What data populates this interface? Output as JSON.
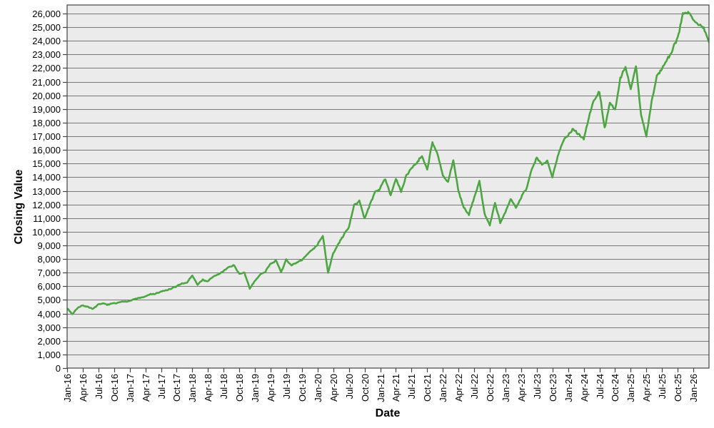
{
  "chart_data": {
    "type": "line",
    "title": "",
    "xlabel": "Date",
    "ylabel": "Closing Value",
    "legend": "none",
    "grid": "horizontal",
    "colors": {
      "page_background": "#ffffff",
      "plot_background": "#ebebeb",
      "gridline": "#787878",
      "frame": "#444444",
      "tick": "#000000",
      "line": "#4ca641"
    },
    "ylim": [
      0,
      26628
    ],
    "y_tick_step": 1000,
    "y_tick_labels": [
      "0",
      "1,000",
      "2,000",
      "3,000",
      "4,000",
      "5,000",
      "6,000",
      "7,000",
      "8,000",
      "9,000",
      "10,000",
      "11,000",
      "12,000",
      "13,000",
      "14,000",
      "15,000",
      "16,000",
      "17,000",
      "18,000",
      "19,000",
      "20,000",
      "21,000",
      "22,000",
      "23,000",
      "24,000",
      "25,000",
      "26,000"
    ],
    "x_interval": "monthly",
    "x_start": "Jan-16",
    "x_end": "Apr-26",
    "x_tick_every_months": 3,
    "x_tick_labels": [
      "Jan-16",
      "Apr-16",
      "Jul-16",
      "Oct-16",
      "Jan-17",
      "Apr-17",
      "Jul-17",
      "Oct-17",
      "Jan-18",
      "Apr-18",
      "Jul-18",
      "Oct-18",
      "Jan-19",
      "Apr-19",
      "Jul-19",
      "Oct-19",
      "Jan-20",
      "Apr-20",
      "Jul-20",
      "Oct-20",
      "Jan-21",
      "Apr-21",
      "Jul-21",
      "Oct-21",
      "Jan-22",
      "Apr-22",
      "Jul-22",
      "Oct-22",
      "Jan-23",
      "Apr-23",
      "Jul-23",
      "Oct-23",
      "Jan-24",
      "Apr-24",
      "Jul-24",
      "Oct-24",
      "Jan-25",
      "Apr-25",
      "Jul-25",
      "Oct-25",
      "Jan-26"
    ],
    "series": [
      {
        "name": "Closing Value",
        "style": "noisy daily closing-price line",
        "monthly_values": [
          4400,
          3950,
          4450,
          4600,
          4500,
          4350,
          4650,
          4700,
          4650,
          4750,
          4800,
          4900,
          4950,
          5050,
          5150,
          5250,
          5400,
          5450,
          5600,
          5700,
          5800,
          6000,
          6200,
          6300,
          6800,
          6100,
          6500,
          6350,
          6700,
          6900,
          7100,
          7400,
          7550,
          6900,
          6950,
          5800,
          6450,
          6850,
          7100,
          7700,
          7900,
          7000,
          8000,
          7500,
          7700,
          7900,
          8300,
          8700,
          9100,
          9750,
          7000,
          8400,
          9100,
          9750,
          10400,
          11900,
          12300,
          10900,
          12000,
          12900,
          13200,
          13900,
          12700,
          13900,
          12900,
          14100,
          14700,
          15100,
          15600,
          14600,
          16600,
          15600,
          14100,
          13600,
          15200,
          13000,
          11800,
          11200,
          12500,
          13700,
          11300,
          10500,
          12100,
          10600,
          11400,
          12400,
          11800,
          12600,
          13200,
          14500,
          15400,
          14900,
          15100,
          14000,
          15600,
          16700,
          17100,
          17600,
          17200,
          16800,
          18400,
          19700,
          20300,
          17600,
          19500,
          18900,
          21200,
          22000,
          20500,
          22200,
          18600,
          17000,
          19500,
          21400,
          22000,
          22700,
          23300,
          24300,
          26000,
          26200,
          25600,
          25200,
          24900,
          23900
        ]
      }
    ]
  }
}
